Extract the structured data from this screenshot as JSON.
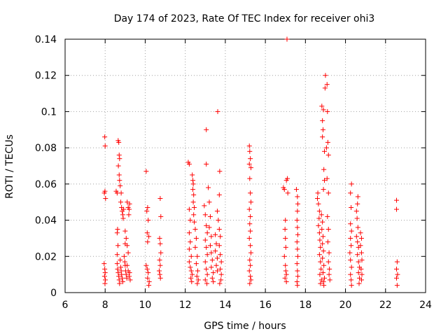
{
  "chart_data": {
    "type": "scatter",
    "title": "Day 174 of 2023, Rate Of TEC Index for receiver ohi3",
    "xlabel": "GPS time / hours",
    "ylabel": "ROTI / TECUs",
    "xlim": [
      6,
      24
    ],
    "ylim": [
      0,
      0.14
    ],
    "xticks": [
      6,
      8,
      10,
      12,
      14,
      16,
      18,
      20,
      22,
      24
    ],
    "yticks": [
      0,
      0.02,
      0.04,
      0.06,
      0.08,
      0.1,
      0.12,
      0.14
    ],
    "xtick_labels": [
      "6",
      "8",
      "10",
      "12",
      "14",
      "16",
      "18",
      "20",
      "22",
      "24"
    ],
    "ytick_labels": [
      "0",
      "0.02",
      "0.04",
      "0.06",
      "0.08",
      "0.1",
      "0.12",
      "0.14"
    ],
    "grid": true,
    "marker": "plus",
    "color": "#ff0000",
    "points": [
      [
        7.98,
        0.086
      ],
      [
        8.0,
        0.081
      ],
      [
        7.96,
        0.055
      ],
      [
        7.99,
        0.056
      ],
      [
        8.02,
        0.052
      ],
      [
        7.95,
        0.016
      ],
      [
        7.98,
        0.013
      ],
      [
        8.0,
        0.011
      ],
      [
        7.97,
        0.009
      ],
      [
        8.01,
        0.007
      ],
      [
        7.99,
        0.005
      ],
      [
        8.55,
        0.056
      ],
      [
        8.6,
        0.055
      ],
      [
        8.65,
        0.084
      ],
      [
        8.68,
        0.083
      ],
      [
        8.7,
        0.076
      ],
      [
        8.72,
        0.074
      ],
      [
        8.66,
        0.07
      ],
      [
        8.7,
        0.065
      ],
      [
        8.72,
        0.062
      ],
      [
        8.75,
        0.059
      ],
      [
        8.8,
        0.055
      ],
      [
        8.62,
        0.035
      ],
      [
        8.6,
        0.033
      ],
      [
        8.64,
        0.026
      ],
      [
        8.6,
        0.021
      ],
      [
        8.6,
        0.016
      ],
      [
        8.62,
        0.013
      ],
      [
        8.65,
        0.011
      ],
      [
        8.68,
        0.009
      ],
      [
        8.7,
        0.007
      ],
      [
        8.72,
        0.005
      ],
      [
        8.75,
        0.018
      ],
      [
        8.78,
        0.014
      ],
      [
        8.8,
        0.012
      ],
      [
        8.82,
        0.01
      ],
      [
        8.85,
        0.008
      ],
      [
        8.88,
        0.006
      ],
      [
        8.78,
        0.05
      ],
      [
        8.82,
        0.047
      ],
      [
        8.85,
        0.045
      ],
      [
        8.88,
        0.043
      ],
      [
        8.9,
        0.041
      ],
      [
        8.92,
        0.046
      ],
      [
        8.95,
        0.02
      ],
      [
        8.98,
        0.017
      ],
      [
        9.0,
        0.015
      ],
      [
        9.02,
        0.012
      ],
      [
        9.05,
        0.01
      ],
      [
        9.08,
        0.008
      ],
      [
        9.0,
        0.034
      ],
      [
        9.05,
        0.03
      ],
      [
        9.0,
        0.027
      ],
      [
        9.1,
        0.026
      ],
      [
        9.15,
        0.022
      ],
      [
        9.1,
        0.05
      ],
      [
        9.15,
        0.047
      ],
      [
        9.22,
        0.049
      ],
      [
        9.2,
        0.046
      ],
      [
        9.18,
        0.043
      ],
      [
        9.1,
        0.015
      ],
      [
        9.15,
        0.012
      ],
      [
        9.2,
        0.009
      ],
      [
        9.25,
        0.007
      ],
      [
        9.22,
        0.011
      ],
      [
        10.05,
        0.067
      ],
      [
        10.08,
        0.045
      ],
      [
        10.12,
        0.047
      ],
      [
        10.15,
        0.04
      ],
      [
        10.1,
        0.033
      ],
      [
        10.18,
        0.031
      ],
      [
        10.12,
        0.028
      ],
      [
        10.05,
        0.015
      ],
      [
        10.1,
        0.013
      ],
      [
        10.15,
        0.011
      ],
      [
        10.12,
        0.008
      ],
      [
        10.2,
        0.006
      ],
      [
        10.18,
        0.004
      ],
      [
        10.75,
        0.052
      ],
      [
        10.78,
        0.042
      ],
      [
        10.72,
        0.03
      ],
      [
        10.75,
        0.027
      ],
      [
        10.78,
        0.022
      ],
      [
        10.72,
        0.018
      ],
      [
        10.75,
        0.015
      ],
      [
        10.7,
        0.012
      ],
      [
        10.73,
        0.01
      ],
      [
        10.76,
        0.008
      ],
      [
        12.15,
        0.072
      ],
      [
        12.2,
        0.071
      ],
      [
        12.2,
        0.046
      ],
      [
        12.25,
        0.04
      ],
      [
        12.2,
        0.033
      ],
      [
        12.25,
        0.028
      ],
      [
        12.2,
        0.024
      ],
      [
        12.3,
        0.02
      ],
      [
        12.2,
        0.017
      ],
      [
        12.25,
        0.014
      ],
      [
        12.3,
        0.012
      ],
      [
        12.35,
        0.01
      ],
      [
        12.28,
        0.008
      ],
      [
        12.32,
        0.006
      ],
      [
        12.35,
        0.065
      ],
      [
        12.38,
        0.062
      ],
      [
        12.4,
        0.06
      ],
      [
        12.38,
        0.057
      ],
      [
        12.42,
        0.054
      ],
      [
        12.4,
        0.05
      ],
      [
        12.45,
        0.047
      ],
      [
        12.42,
        0.043
      ],
      [
        12.45,
        0.039
      ],
      [
        12.5,
        0.035
      ],
      [
        12.55,
        0.03
      ],
      [
        12.5,
        0.025
      ],
      [
        12.6,
        0.02
      ],
      [
        12.55,
        0.016
      ],
      [
        12.62,
        0.012
      ],
      [
        12.58,
        0.009
      ],
      [
        12.65,
        0.007
      ],
      [
        12.6,
        0.005
      ],
      [
        13.05,
        0.09
      ],
      [
        13.05,
        0.071
      ],
      [
        12.95,
        0.048
      ],
      [
        13.0,
        0.043
      ],
      [
        13.05,
        0.037
      ],
      [
        13.1,
        0.033
      ],
      [
        13.0,
        0.029
      ],
      [
        13.05,
        0.025
      ],
      [
        13.1,
        0.021
      ],
      [
        13.0,
        0.017
      ],
      [
        13.05,
        0.013
      ],
      [
        13.1,
        0.01
      ],
      [
        13.0,
        0.007
      ],
      [
        13.08,
        0.005
      ],
      [
        13.15,
        0.058
      ],
      [
        13.2,
        0.05
      ],
      [
        13.25,
        0.042
      ],
      [
        13.2,
        0.036
      ],
      [
        13.3,
        0.031
      ],
      [
        13.25,
        0.026
      ],
      [
        13.3,
        0.022
      ],
      [
        13.35,
        0.018
      ],
      [
        13.3,
        0.014
      ],
      [
        13.4,
        0.011
      ],
      [
        13.35,
        0.008
      ],
      [
        13.4,
        0.006
      ],
      [
        13.5,
        0.032
      ],
      [
        13.55,
        0.027
      ],
      [
        13.5,
        0.023
      ],
      [
        13.6,
        0.019
      ],
      [
        13.55,
        0.015
      ],
      [
        13.6,
        0.012
      ],
      [
        13.62,
        0.1
      ],
      [
        13.72,
        0.067
      ],
      [
        13.7,
        0.054
      ],
      [
        13.6,
        0.045
      ],
      [
        13.65,
        0.04
      ],
      [
        13.7,
        0.035
      ],
      [
        13.75,
        0.031
      ],
      [
        13.7,
        0.026
      ],
      [
        13.75,
        0.021
      ],
      [
        13.8,
        0.017
      ],
      [
        13.75,
        0.013
      ],
      [
        13.8,
        0.01
      ],
      [
        13.78,
        0.007
      ],
      [
        13.72,
        0.005
      ],
      [
        15.2,
        0.081
      ],
      [
        15.22,
        0.078
      ],
      [
        15.25,
        0.074
      ],
      [
        15.2,
        0.071
      ],
      [
        15.28,
        0.069
      ],
      [
        15.22,
        0.063
      ],
      [
        15.25,
        0.055
      ],
      [
        15.28,
        0.05
      ],
      [
        15.2,
        0.046
      ],
      [
        15.25,
        0.042
      ],
      [
        15.22,
        0.038
      ],
      [
        15.25,
        0.034
      ],
      [
        15.2,
        0.03
      ],
      [
        15.25,
        0.026
      ],
      [
        15.28,
        0.022
      ],
      [
        15.22,
        0.018
      ],
      [
        15.25,
        0.015
      ],
      [
        15.2,
        0.012
      ],
      [
        15.25,
        0.009
      ],
      [
        15.28,
        0.007
      ],
      [
        15.22,
        0.005
      ],
      [
        16.9,
        0.058
      ],
      [
        16.95,
        0.057
      ],
      [
        17.05,
        0.062
      ],
      [
        17.1,
        0.063
      ],
      [
        17.12,
        0.055
      ],
      [
        17.08,
        0.14
      ],
      [
        17.0,
        0.04
      ],
      [
        16.98,
        0.035
      ],
      [
        17.0,
        0.03
      ],
      [
        17.02,
        0.025
      ],
      [
        16.95,
        0.02
      ],
      [
        17.0,
        0.015
      ],
      [
        17.02,
        0.012
      ],
      [
        17.05,
        0.01
      ],
      [
        16.98,
        0.008
      ],
      [
        17.05,
        0.006
      ],
      [
        17.55,
        0.057
      ],
      [
        17.6,
        0.053
      ],
      [
        17.62,
        0.049
      ],
      [
        17.6,
        0.045
      ],
      [
        17.58,
        0.04
      ],
      [
        17.6,
        0.036
      ],
      [
        17.62,
        0.032
      ],
      [
        17.58,
        0.028
      ],
      [
        17.6,
        0.024
      ],
      [
        17.62,
        0.02
      ],
      [
        17.58,
        0.016
      ],
      [
        17.6,
        0.012
      ],
      [
        17.62,
        0.009
      ],
      [
        17.58,
        0.006
      ],
      [
        17.6,
        0.004
      ],
      [
        18.62,
        0.055
      ],
      [
        18.6,
        0.052
      ],
      [
        18.65,
        0.049
      ],
      [
        18.7,
        0.045
      ],
      [
        18.68,
        0.041
      ],
      [
        18.65,
        0.037
      ],
      [
        18.7,
        0.033
      ],
      [
        18.72,
        0.029
      ],
      [
        18.75,
        0.025
      ],
      [
        18.7,
        0.021
      ],
      [
        18.75,
        0.017
      ],
      [
        18.78,
        0.013
      ],
      [
        18.72,
        0.01
      ],
      [
        18.8,
        0.007
      ],
      [
        18.75,
        0.005
      ],
      [
        18.8,
        0.043
      ],
      [
        18.85,
        0.039
      ],
      [
        18.82,
        0.035
      ],
      [
        18.88,
        0.031
      ],
      [
        18.85,
        0.027
      ],
      [
        18.9,
        0.023
      ],
      [
        18.85,
        0.019
      ],
      [
        18.92,
        0.015
      ],
      [
        18.88,
        0.011
      ],
      [
        18.95,
        0.008
      ],
      [
        18.9,
        0.006
      ],
      [
        18.92,
        0.004
      ],
      [
        18.82,
        0.103
      ],
      [
        18.9,
        0.101
      ],
      [
        18.85,
        0.095
      ],
      [
        18.88,
        0.09
      ],
      [
        18.85,
        0.086
      ],
      [
        18.95,
        0.078
      ],
      [
        19.05,
        0.08
      ],
      [
        18.92,
        0.068
      ],
      [
        18.95,
        0.062
      ],
      [
        18.9,
        0.057
      ],
      [
        19.0,
        0.12
      ],
      [
        18.98,
        0.113
      ],
      [
        19.08,
        0.115
      ],
      [
        19.1,
        0.1
      ],
      [
        19.12,
        0.083
      ],
      [
        19.15,
        0.076
      ],
      [
        19.08,
        0.063
      ],
      [
        19.15,
        0.055
      ],
      [
        19.1,
        0.042
      ],
      [
        19.15,
        0.035
      ],
      [
        19.12,
        0.028
      ],
      [
        19.18,
        0.022
      ],
      [
        19.15,
        0.017
      ],
      [
        19.2,
        0.013
      ],
      [
        19.18,
        0.01
      ],
      [
        19.22,
        0.007
      ],
      [
        20.3,
        0.06
      ],
      [
        20.25,
        0.055
      ],
      [
        20.28,
        0.047
      ],
      [
        20.25,
        0.038
      ],
      [
        20.3,
        0.034
      ],
      [
        20.25,
        0.03
      ],
      [
        20.28,
        0.026
      ],
      [
        20.22,
        0.022
      ],
      [
        20.25,
        0.018
      ],
      [
        20.3,
        0.014
      ],
      [
        20.25,
        0.01
      ],
      [
        20.28,
        0.007
      ],
      [
        20.3,
        0.004
      ],
      [
        20.62,
        0.053
      ],
      [
        20.6,
        0.049
      ],
      [
        20.55,
        0.045
      ],
      [
        20.58,
        0.041
      ],
      [
        20.62,
        0.036
      ],
      [
        20.55,
        0.031
      ],
      [
        20.6,
        0.028
      ],
      [
        20.65,
        0.025
      ],
      [
        20.6,
        0.021
      ],
      [
        20.65,
        0.017
      ],
      [
        20.7,
        0.014
      ],
      [
        20.65,
        0.011
      ],
      [
        20.7,
        0.008
      ],
      [
        20.68,
        0.005
      ],
      [
        20.75,
        0.033
      ],
      [
        20.8,
        0.03
      ],
      [
        20.75,
        0.026
      ],
      [
        20.8,
        0.022
      ],
      [
        20.82,
        0.018
      ],
      [
        20.78,
        0.013
      ],
      [
        20.82,
        0.01
      ],
      [
        20.8,
        0.007
      ],
      [
        22.55,
        0.051
      ],
      [
        22.55,
        0.046
      ],
      [
        22.58,
        0.017
      ],
      [
        22.55,
        0.013
      ],
      [
        22.6,
        0.01
      ],
      [
        22.55,
        0.008
      ],
      [
        22.58,
        0.004
      ]
    ]
  }
}
